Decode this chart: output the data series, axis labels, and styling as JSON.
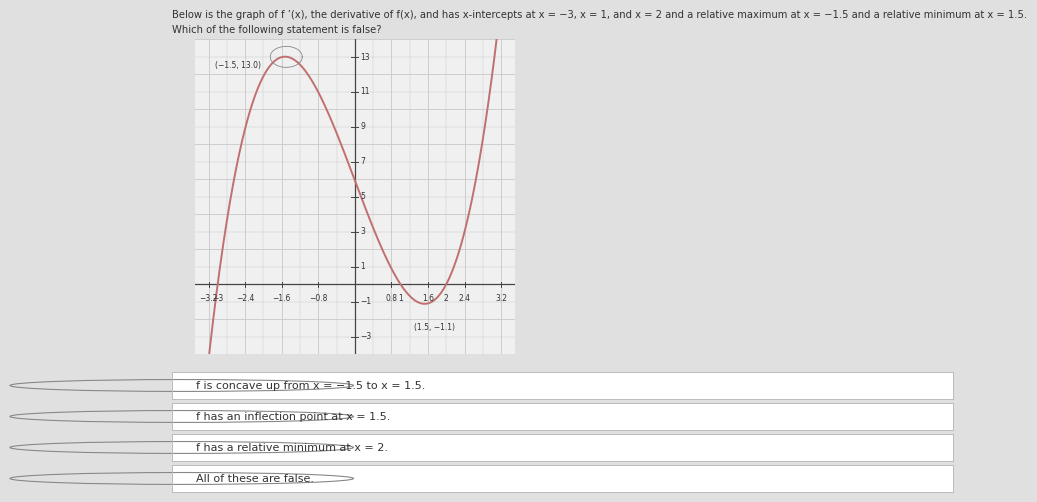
{
  "title_line1": "Below is the graph of f ’(x), the derivative of f(x), and has x-intercepts at x = −3, x = 1, and x = 2 and a relative maximum at x = −1.5 and a relative minimum at x = 1.5.",
  "title_line2": "Which of the following statement is false?",
  "coeff": 0.991,
  "x_min": -3.5,
  "x_max": 3.5,
  "y_min": -4.0,
  "y_max": 14.0,
  "curve_color": "#c07070",
  "grid_color": "#c8c8c8",
  "background_color": "#e0e0e0",
  "plot_bg_color": "#f0f0f0",
  "annotation_max": "(−1.5, 13.0)",
  "annotation_min": "(1.5, −1.1)",
  "x_labels": [
    "−3.2",
    "−2.4",
    "−1.6",
    "−0.8",
    "0.8",
    "1.6",
    "2.4",
    "3.2"
  ],
  "x_label_vals": [
    -3.2,
    -2.4,
    -1.6,
    -0.8,
    0.8,
    1.6,
    2.4,
    3.2
  ],
  "y_labels": [
    "−3",
    "−1",
    "1",
    "3",
    "5",
    "7",
    "9",
    "11",
    "13"
  ],
  "y_label_vals": [
    -3,
    -1,
    1,
    3,
    5,
    7,
    9,
    11,
    13
  ],
  "choices": [
    "f is concave up from x = −1.5 to x = 1.5.",
    "f has an inflection point at x = 1.5.",
    "f has a relative minimum at x = 2.",
    "All of these are false."
  ]
}
